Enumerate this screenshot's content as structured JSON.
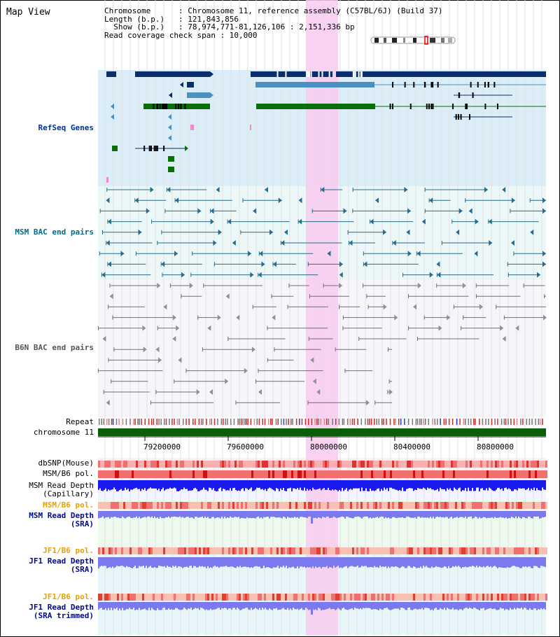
{
  "header": {
    "title": "Map View",
    "lines": [
      "Chromosome      : Chromosome 11, reference assembly (C57BL/6J) (Build 37)",
      "Length (b.p.)   : 121,843,856",
      "  Show (b.p.)   : 78,974,771-81,126,106 : 2,151,336 bp",
      "Read coverage check span : 10,000"
    ]
  },
  "tracks": {
    "refseq": "RefSeq Genes",
    "msm_bac": "MSM BAC end pairs",
    "b6n_bac": "B6N BAC end pairs",
    "repeat": "Repeat",
    "chromosome": "chromosome 11",
    "dbsnp": "dbSNP(Mouse)",
    "msm_b6_pol_1": "MSM/B6 pol.",
    "msm_depth_cap_1": "MSM Read Depth",
    "msm_depth_cap_2": "(Capillary)",
    "msm_b6_pol_2": "MSM/B6 pol.",
    "msm_depth_sra_1": "MSM Read Depth",
    "msm_depth_sra_2": "(SRA)",
    "jf1_b6_pol_1": "JF1/B6 pol.",
    "jf1_depth_1": "JF1 Read Depth",
    "jf1_depth_2": "(SRA)",
    "jf1_b6_pol_2": "JF1/B6 pol.",
    "jf1_trim_1": "JF1 Read Depth",
    "jf1_trim_2": "(SRA trimmed)"
  },
  "axis": {
    "ticks": [
      "79200000",
      "79600000",
      "80000000",
      "80400000",
      "80800000"
    ],
    "tick_values": [
      79200000,
      79600000,
      80000000,
      80400000,
      80800000
    ],
    "range": [
      78974771,
      81126106
    ]
  },
  "colors": {
    "gene_dark": "#0a2d6b",
    "gene_mid": "#4a90c0",
    "gene_green": "#0a6e0a",
    "chromosome": "#0a5e0a",
    "depth_blue": "#1a1aee",
    "depth_purple": "#7a7aee",
    "highlight": "#f8d0f0",
    "msm_arrow": "#2a6a8a",
    "b6n_line": "#707070",
    "label_blue": "#00309a",
    "label_teal": "#006a8a",
    "label_gray": "#555555",
    "label_orange": "#e8a000",
    "label_navy": "#000a8a"
  }
}
